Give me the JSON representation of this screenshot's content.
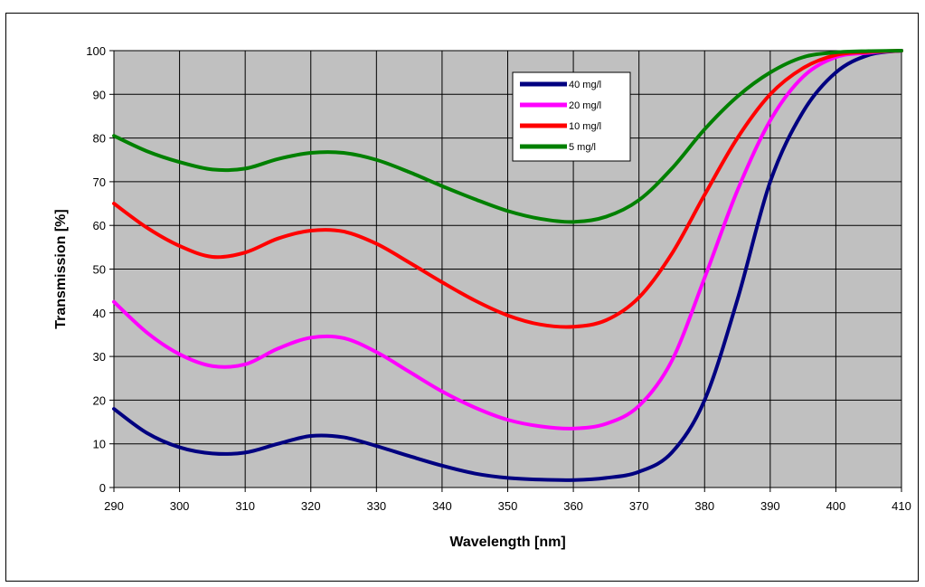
{
  "chart_data": {
    "type": "line",
    "title": "",
    "xlabel": "Wavelength [nm]",
    "ylabel": "Transmission [%]",
    "xlim": [
      290,
      410
    ],
    "ylim": [
      0,
      100
    ],
    "xticks": [
      290,
      300,
      310,
      320,
      330,
      340,
      350,
      360,
      370,
      380,
      390,
      400,
      410
    ],
    "yticks": [
      0,
      10,
      20,
      30,
      40,
      50,
      60,
      70,
      80,
      90,
      100
    ],
    "grid": true,
    "legend_position": "top-center",
    "plot_background": "#c0c0c0",
    "series": [
      {
        "name": "40 mg/l",
        "color": "#000080",
        "x": [
          290,
          295,
          300,
          305,
          310,
          315,
          320,
          325,
          330,
          335,
          340,
          345,
          350,
          355,
          360,
          365,
          370,
          375,
          380,
          385,
          390,
          395,
          400,
          405,
          410
        ],
        "y": [
          18,
          12.5,
          9.2,
          7.8,
          8,
          10,
          11.8,
          11.5,
          9.5,
          7.2,
          5,
          3.2,
          2.2,
          1.8,
          1.7,
          2.2,
          3.6,
          8,
          20,
          43,
          70,
          86,
          95,
          99,
          100
        ]
      },
      {
        "name": "20 mg/l",
        "color": "#ff00ff",
        "x": [
          290,
          295,
          300,
          305,
          310,
          315,
          320,
          325,
          330,
          335,
          340,
          345,
          350,
          355,
          360,
          365,
          370,
          375,
          380,
          385,
          390,
          395,
          400,
          405,
          410
        ],
        "y": [
          42.5,
          35.5,
          30.5,
          27.8,
          28.2,
          31.8,
          34.3,
          34.2,
          31,
          26.5,
          22,
          18.3,
          15.5,
          14,
          13.5,
          14.6,
          18.7,
          29,
          48,
          68,
          84,
          94,
          98.5,
          99.5,
          100
        ]
      },
      {
        "name": "10 mg/l",
        "color": "#ff0000",
        "x": [
          290,
          295,
          300,
          305,
          310,
          315,
          320,
          325,
          330,
          335,
          340,
          345,
          350,
          355,
          360,
          365,
          370,
          375,
          380,
          385,
          390,
          395,
          400,
          405,
          410
        ],
        "y": [
          65,
          59.5,
          55.3,
          52.8,
          53.8,
          57,
          58.8,
          58.6,
          55.8,
          51.5,
          47,
          42.8,
          39.4,
          37.3,
          36.8,
          38.3,
          43.5,
          53.5,
          67,
          80,
          90,
          96,
          99,
          99.7,
          100
        ]
      },
      {
        "name": "5 mg/l",
        "color": "#008000",
        "x": [
          290,
          295,
          300,
          305,
          310,
          315,
          320,
          325,
          330,
          335,
          340,
          345,
          350,
          355,
          360,
          365,
          370,
          375,
          380,
          385,
          390,
          395,
          400,
          405,
          410
        ],
        "y": [
          80.5,
          77,
          74.5,
          72.8,
          73,
          75.2,
          76.6,
          76.6,
          75,
          72.2,
          69,
          66,
          63.3,
          61.5,
          60.8,
          62,
          65.8,
          73,
          82,
          89.5,
          95,
          98.5,
          99.6,
          99.9,
          100
        ]
      }
    ]
  }
}
